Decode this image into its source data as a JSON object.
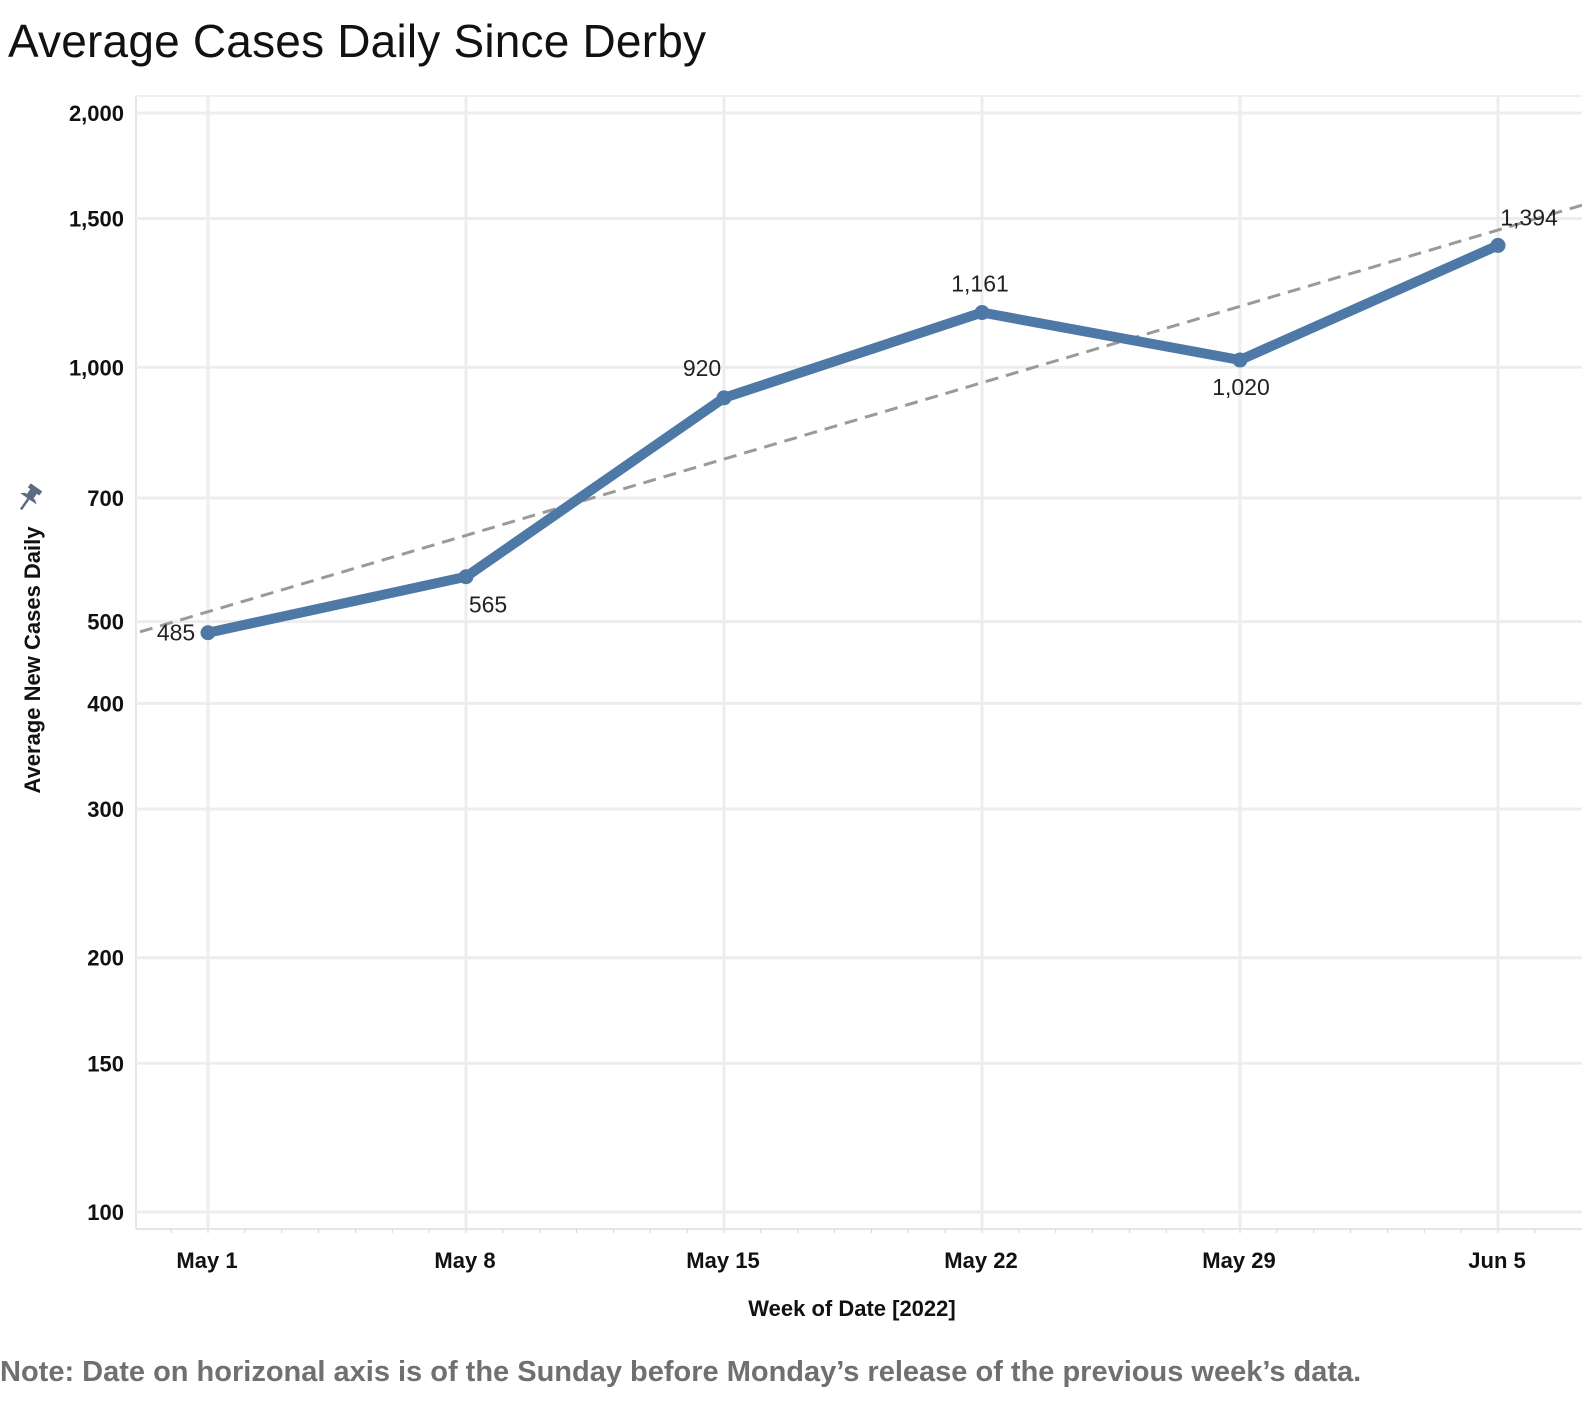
{
  "chart_data": {
    "type": "line",
    "title": "Average Cases Daily Since Derby",
    "xlabel": "Week of Date [2022]",
    "ylabel": "Average New Cases Daily",
    "yscale": "log",
    "ylim": [
      100,
      2000
    ],
    "yticks": [
      {
        "value": 100,
        "label": "100"
      },
      {
        "value": 150,
        "label": "150"
      },
      {
        "value": 200,
        "label": "200"
      },
      {
        "value": 300,
        "label": "300"
      },
      {
        "value": 400,
        "label": "400"
      },
      {
        "value": 500,
        "label": "500"
      },
      {
        "value": 700,
        "label": "700"
      },
      {
        "value": 1000,
        "label": "1,000"
      },
      {
        "value": 1500,
        "label": "1,500"
      },
      {
        "value": 2000,
        "label": "2,000"
      }
    ],
    "categories": [
      "May 1",
      "May 8",
      "May 15",
      "May 22",
      "May 29",
      "Jun 5"
    ],
    "series": [
      {
        "values": [
          485,
          565,
          920,
          1161,
          1020,
          1394
        ],
        "labels": [
          "485",
          "565",
          "920",
          "1,161",
          "1,020",
          "1,394"
        ],
        "color": "#4e79a7"
      }
    ],
    "trendline": {
      "style": "dashed",
      "color": "#9a9a9a",
      "scale": "log-linear"
    },
    "grid": true,
    "legend": "none"
  },
  "ylabel_icon": "pin-icon",
  "footnote": "Note: Date on horizonal axis is of the Sunday before Monday’s release of the previous week’s data."
}
